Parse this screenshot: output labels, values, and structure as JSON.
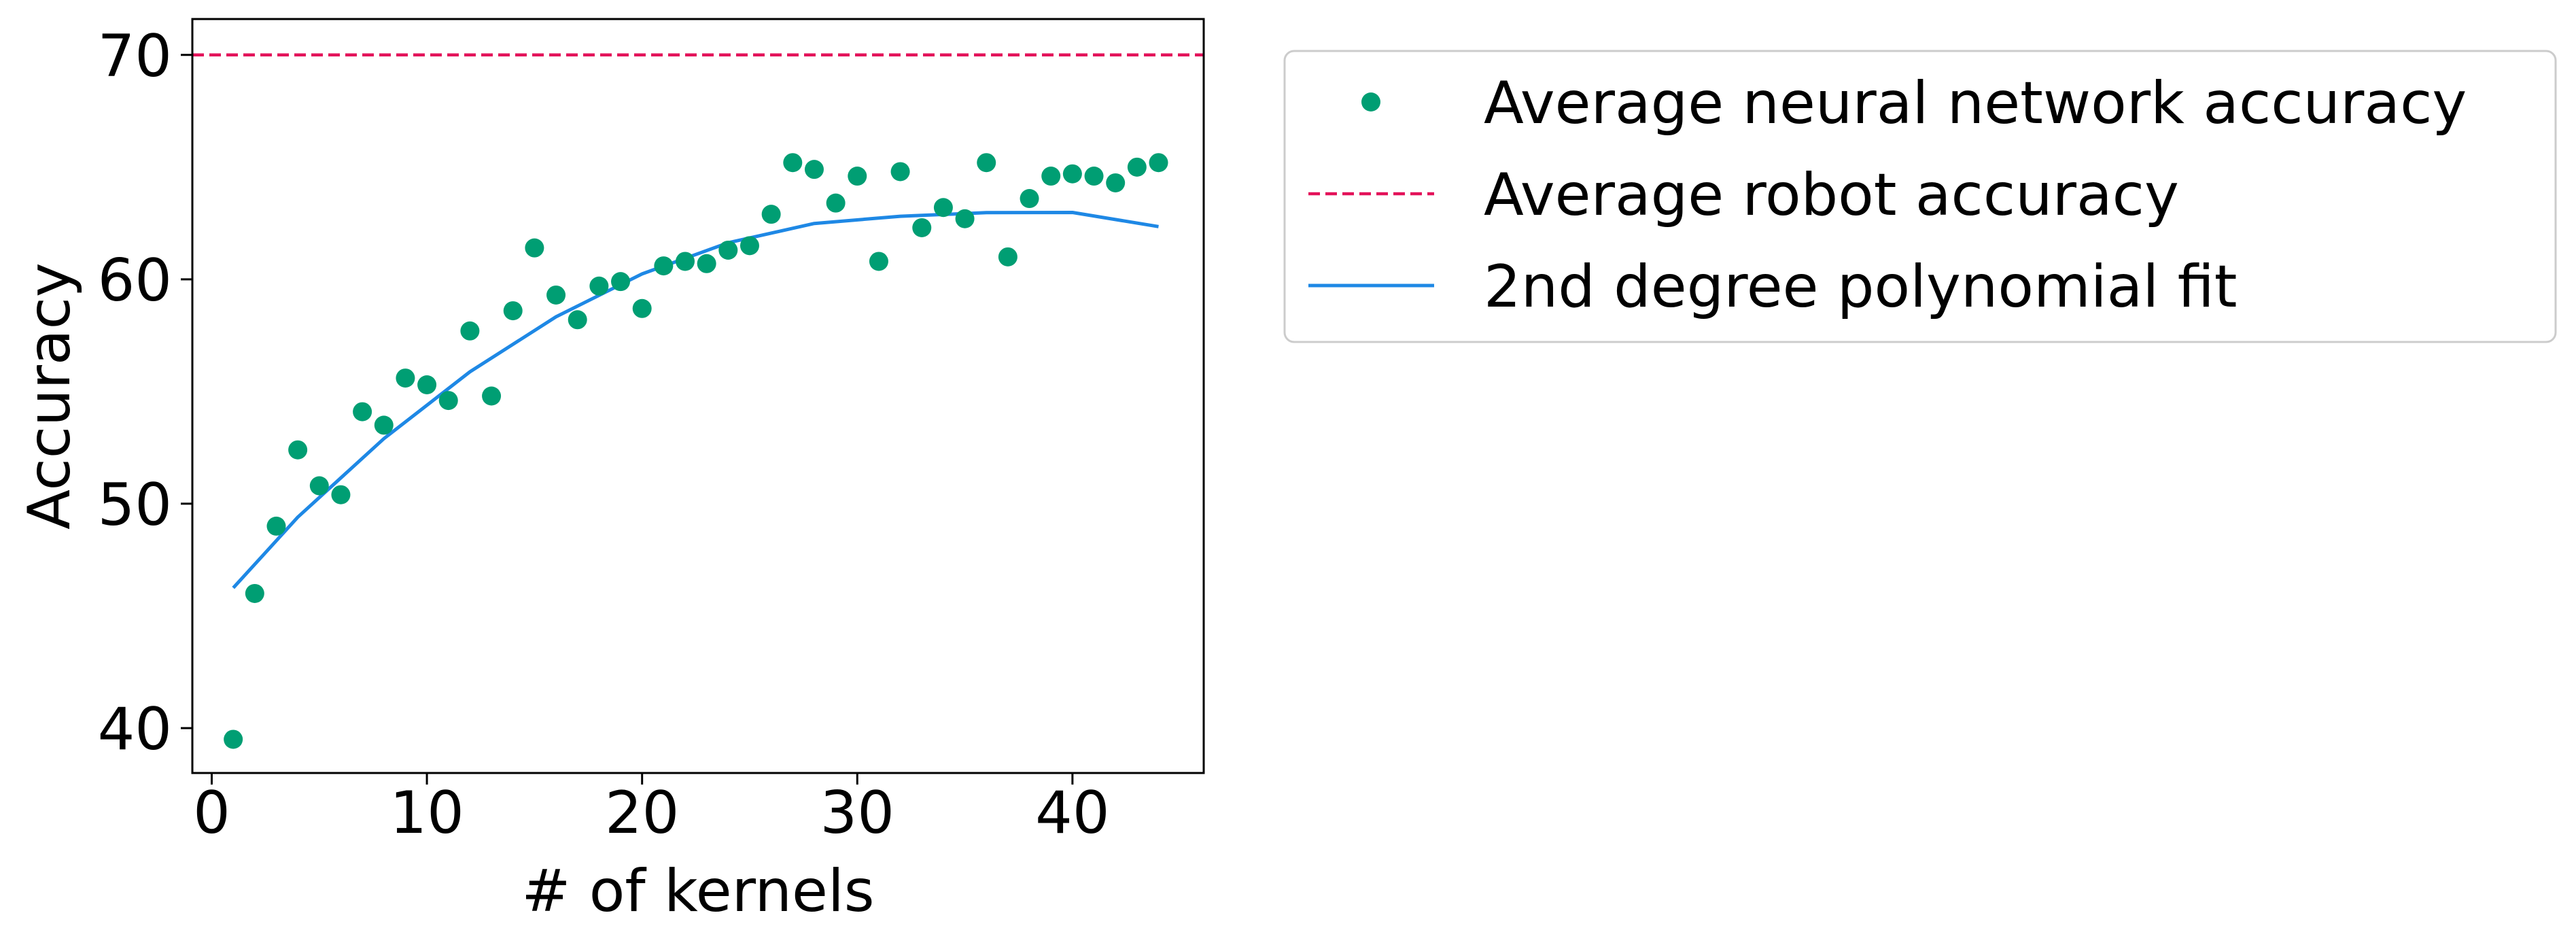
{
  "chart_data": {
    "type": "scatter",
    "xlabel": "# of kernels",
    "ylabel": "Accuracy",
    "xlim": [
      -0.9,
      46.1
    ],
    "ylim": [
      38.0,
      71.6
    ],
    "xticks": [
      0,
      10,
      20,
      30,
      40
    ],
    "yticks": [
      40,
      50,
      60,
      70
    ],
    "grid": false,
    "legend_position": "outside-right-top",
    "series": [
      {
        "name": "Average neural network accuracy",
        "kind": "points",
        "color": "#009E73",
        "x": [
          1,
          2,
          3,
          4,
          5,
          6,
          7,
          8,
          9,
          10,
          11,
          12,
          13,
          14,
          15,
          16,
          17,
          18,
          19,
          20,
          21,
          22,
          23,
          24,
          25,
          26,
          27,
          28,
          29,
          30,
          31,
          32,
          33,
          34,
          35,
          36,
          37,
          38,
          39,
          40,
          41,
          42,
          43,
          44
        ],
        "y": [
          39.5,
          46.0,
          49.0,
          52.4,
          50.8,
          50.4,
          54.1,
          53.5,
          55.6,
          55.3,
          54.6,
          57.7,
          54.8,
          58.6,
          61.4,
          59.3,
          58.2,
          59.7,
          59.9,
          58.7,
          60.6,
          60.8,
          60.7,
          61.3,
          61.5,
          62.9,
          65.2,
          64.9,
          63.4,
          64.6,
          60.8,
          64.8,
          62.3,
          63.2,
          62.7,
          65.2,
          61.0,
          63.6,
          64.6,
          64.7,
          64.6,
          64.3,
          65.0,
          65.2
        ]
      },
      {
        "name": "Average robot accuracy",
        "kind": "hline",
        "color": "#E3125A",
        "y": 70.0
      },
      {
        "name": "2nd degree polynomial fit",
        "kind": "line",
        "color": "#1E88E5",
        "x": [
          1,
          4,
          8,
          12,
          16,
          20,
          24,
          28,
          32,
          36,
          40,
          44
        ],
        "y": [
          46.25,
          49.4,
          52.9,
          55.88,
          58.33,
          60.24,
          61.63,
          62.49,
          62.81,
          62.97,
          62.98,
          62.35
        ]
      }
    ]
  }
}
